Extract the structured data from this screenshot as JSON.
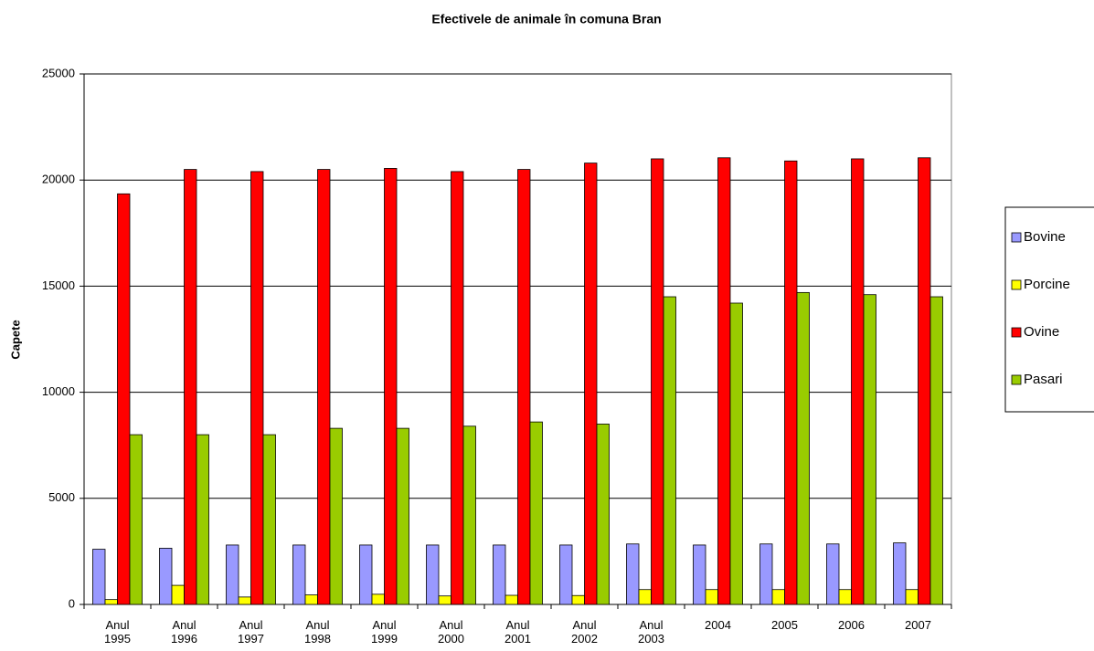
{
  "chart_data": {
    "type": "bar",
    "title": "Efectivele de animale în comuna Bran",
    "y_label": "Capete",
    "categories": [
      "Anul 1995",
      "Anul 1996",
      "Anul 1997",
      "Anul 1998",
      "Anul 1999",
      "Anul 2000",
      "Anul 2001",
      "Anul 2002",
      "Anul 2003",
      "2004",
      "2005",
      "2006",
      "2007"
    ],
    "series": [
      {
        "name": "Bovine",
        "color": "#9999ff",
        "values": [
          2600,
          2650,
          2800,
          2800,
          2800,
          2800,
          2800,
          2800,
          2850,
          2800,
          2850,
          2850,
          2900
        ]
      },
      {
        "name": "Porcine",
        "color": "#ffff00",
        "values": [
          230,
          900,
          350,
          450,
          480,
          400,
          430,
          420,
          700,
          700,
          700,
          700,
          700
        ]
      },
      {
        "name": "Ovine",
        "color": "#ff0000",
        "values": [
          19350,
          20500,
          20400,
          20500,
          20550,
          20400,
          20500,
          20800,
          21000,
          21050,
          20900,
          21000,
          21050
        ]
      },
      {
        "name": "Pasari",
        "color": "#99cc00",
        "values": [
          8000,
          8000,
          8000,
          8300,
          8300,
          8400,
          8600,
          8500,
          14500,
          14200,
          14700,
          14600,
          14500
        ]
      }
    ],
    "ylim": [
      0,
      25000
    ],
    "yticks": [
      0,
      5000,
      10000,
      15000,
      20000,
      25000
    ],
    "grid": true,
    "legend": "right"
  }
}
